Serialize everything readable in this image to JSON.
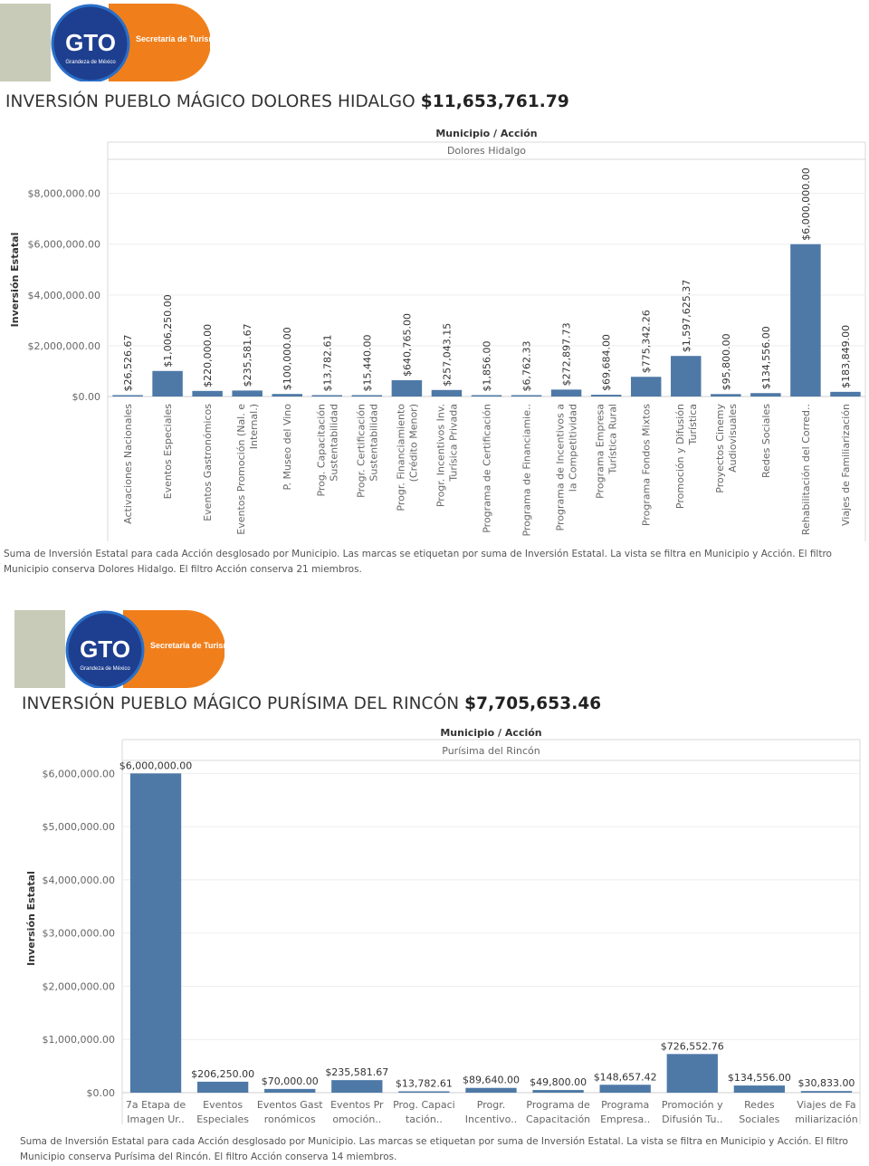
{
  "brand": {
    "logo_text": "GTO",
    "logo_tagline": "Grandeza de México",
    "department": "Secretaría de Turismo",
    "colors": {
      "blue": "#1e3f8f",
      "orange": "#f07f1b",
      "gray": "#c8cbb8"
    }
  },
  "colors": {
    "bar": "#4e79a7",
    "grid": "#eeeeee",
    "axis_text": "#666666"
  },
  "panels": [
    {
      "title": "INVERSIÓN PUEBLO MÁGICO DOLORES HIDALGO ",
      "total": "$11,653,761.79",
      "note": "Suma de Inversión Estatal para cada Acción desglosado por Municipio.  Las marcas se etiquetan por suma de Inversión Estatal. La vista se filtra en Municipio y Acción. El filtro Municipio conserva Dolores Hidalgo. El filtro Acción conserva 21 miembros."
    },
    {
      "title": "INVERSIÓN PUEBLO MÁGICO PURÍSIMA DEL RINCÓN ",
      "total": "$7,705,653.46",
      "note": "Suma de Inversión Estatal para cada Acción desglosado por Municipio.  Las marcas se etiquetan por suma de Inversión Estatal. La vista se filtra en Municipio y Acción. El filtro Municipio conserva Purísima del Rincón. El filtro Acción conserva 14 miembros."
    }
  ],
  "chart_data": [
    {
      "type": "bar",
      "header": "Municipio / Acción",
      "facet": "Dolores Hidalgo",
      "ylabel": "Inversión Estatal",
      "ylim": [
        0,
        9200000
      ],
      "yticks": [
        0,
        2000000,
        4000000,
        6000000,
        8000000
      ],
      "ytick_labels": [
        "$0.00",
        "$2,000,000.00",
        "$4,000,000.00",
        "$6,000,000.00",
        "$8,000,000.00"
      ],
      "label_orientation": "vertical",
      "grid": true,
      "categories": [
        [
          "Activaciones Nacionales"
        ],
        [
          "Eventos Especiales"
        ],
        [
          "Eventos Gastronómicos"
        ],
        [
          "Eventos Promoción (Nal. e",
          "Internal.)"
        ],
        [
          "P. Museo del Vino"
        ],
        [
          "Prog. Capacitación",
          "Sustentabilidad"
        ],
        [
          "Progr. Certificación",
          "Sustentabilidad"
        ],
        [
          "Progr. Financiamiento",
          "(Crédito Menor)"
        ],
        [
          "Progr. Incentivos Inv.",
          "Turísica Privada"
        ],
        [
          "Programa de Certificación"
        ],
        [
          "Programa de Financiamie.."
        ],
        [
          "Programa de Incentivos a",
          "la Competitividad"
        ],
        [
          "Programa Empresa",
          "Turística Rural"
        ],
        [
          "Programa Fondos Mixtos"
        ],
        [
          "Promoción y Difusión",
          "Turística"
        ],
        [
          "Proyectos Cinemy",
          "Audiovisuales"
        ],
        [
          "Redes Sociales"
        ],
        [
          "Rehabilitación del Corred.."
        ],
        [
          "Viajes de Familiarización"
        ]
      ],
      "values": [
        26526.67,
        1006250.0,
        220000.0,
        235581.67,
        100000.0,
        13782.61,
        15440.0,
        640765.0,
        257043.15,
        1856.0,
        6762.33,
        272897.73,
        69684.0,
        775342.26,
        1597625.37,
        95800.0,
        134556.0,
        6000000.0,
        183849.0
      ],
      "value_labels": [
        "$26,526.67",
        "$1,006,250.00",
        "$220,000.00",
        "$235,581.67",
        "$100,000.00",
        "$13,782.61",
        "$15,440.00",
        "$640,765.00",
        "$257,043.15",
        "$1,856.00",
        "$6,762.33",
        "$272,897.73",
        "$69,684.00",
        "$775,342.26",
        "$1,597,625.37",
        "$95,800.00",
        "$134,556.00",
        "$6,000,000.00",
        "$183,849.00"
      ]
    },
    {
      "type": "bar",
      "header": "Municipio / Acción",
      "facet": "Purísima del Rincón",
      "ylabel": "Inversión Estatal",
      "ylim": [
        0,
        6550000
      ],
      "yticks": [
        0,
        1000000,
        2000000,
        3000000,
        4000000,
        5000000,
        6000000
      ],
      "ytick_labels": [
        "$0.00",
        "$1,000,000.00",
        "$2,000,000.00",
        "$3,000,000.00",
        "$4,000,000.00",
        "$5,000,000.00",
        "$6,000,000.00"
      ],
      "label_orientation": "horizontal",
      "grid": true,
      "categories": [
        [
          "7a Etapa de",
          "Imagen Ur.."
        ],
        [
          "Eventos",
          "Especiales"
        ],
        [
          "Eventos Gast",
          "ronómicos"
        ],
        [
          "Eventos Pr",
          "omoción.."
        ],
        [
          "Prog. Capaci",
          "tación.."
        ],
        [
          "Progr.",
          "Incentivo.."
        ],
        [
          "Programa de",
          "Capacitación"
        ],
        [
          "Programa",
          "Empresa.."
        ],
        [
          "Promoción y",
          "Difusión Tu.."
        ],
        [
          "Redes",
          "Sociales"
        ],
        [
          "Viajes de Fa",
          "miliarización"
        ]
      ],
      "values": [
        6000000.0,
        206250.0,
        70000.0,
        235581.67,
        13782.61,
        89640.0,
        49800.0,
        148657.42,
        726552.76,
        134556.0,
        30833.0
      ],
      "value_labels": [
        "$6,000,000.00",
        "$206,250.00",
        "$70,000.00",
        "$235,581.67",
        "$13,782.61",
        "$89,640.00",
        "$49,800.00",
        "$148,657.42",
        "$726,552.76",
        "$134,556.00",
        "$30,833.00"
      ]
    }
  ]
}
